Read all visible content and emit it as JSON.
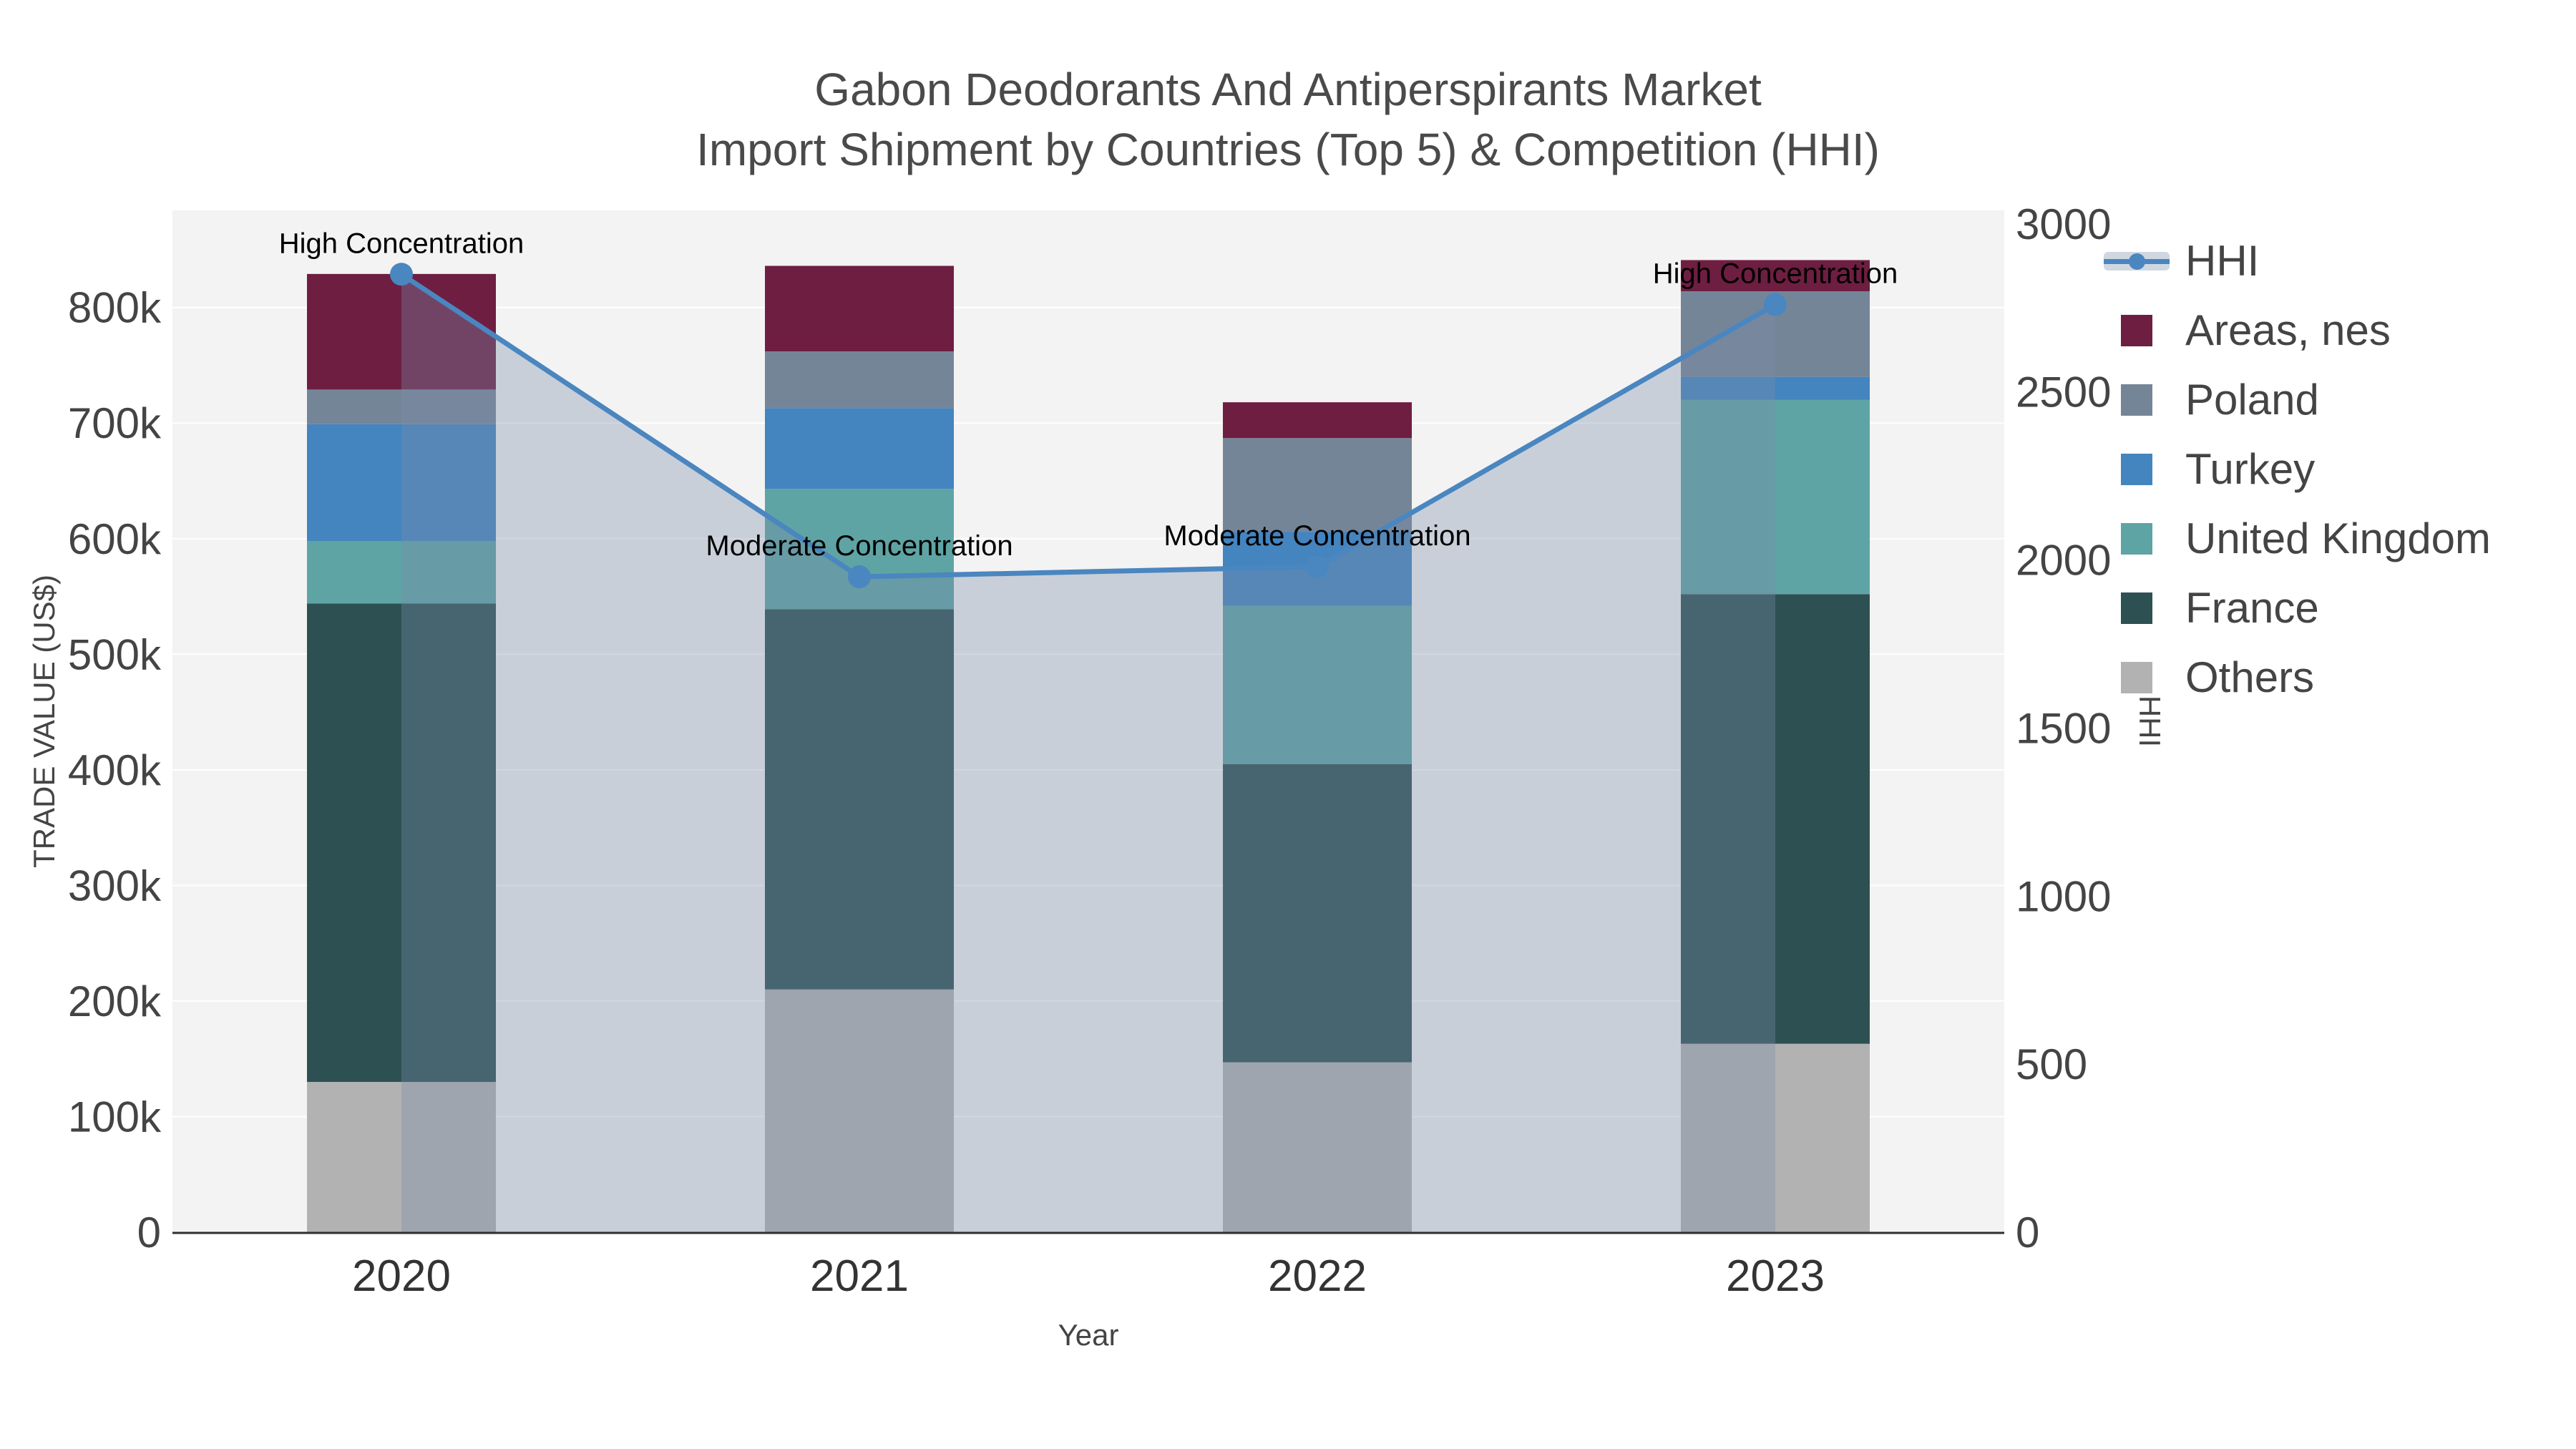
{
  "title": {
    "line1": "Gabon Deodorants And Antiperspirants Market",
    "line2": "Import Shipment by Countries (Top 5) & Competition (HHI)"
  },
  "axes": {
    "x": {
      "title": "Year",
      "ticks": [
        "2020",
        "2021",
        "2022",
        "2023"
      ]
    },
    "y_left": {
      "title": "TRADE VALUE (US$)",
      "ticks": [
        "0",
        "100k",
        "200k",
        "300k",
        "400k",
        "500k",
        "600k",
        "700k",
        "800k"
      ],
      "tick_values": [
        0,
        100000,
        200000,
        300000,
        400000,
        500000,
        600000,
        700000,
        800000
      ]
    },
    "y_right": {
      "title": "HHI",
      "ticks": [
        "0",
        "500",
        "1000",
        "1500",
        "2000",
        "2500",
        "3000"
      ],
      "tick_values": [
        0,
        500,
        1000,
        1500,
        2000,
        2500,
        3000
      ]
    }
  },
  "legend": {
    "items": [
      {
        "key": "hhi",
        "label": "HHI"
      },
      {
        "key": "areas_nes",
        "label": "Areas, nes"
      },
      {
        "key": "poland",
        "label": "Poland"
      },
      {
        "key": "turkey",
        "label": "Turkey"
      },
      {
        "key": "united_kingdom",
        "label": "United Kingdom"
      },
      {
        "key": "france",
        "label": "France"
      },
      {
        "key": "others",
        "label": "Others"
      }
    ]
  },
  "annotations": [
    {
      "text": "High Concentration",
      "x": "2020"
    },
    {
      "text": "Moderate Concentration",
      "x": "2021"
    },
    {
      "text": "Moderate Concentration",
      "x": "2022"
    },
    {
      "text": "High Concentration",
      "x": "2023"
    }
  ],
  "colors": {
    "areas_nes": "#6e1e41",
    "poland": "#758598",
    "turkey": "#4484bf",
    "united_kingdom": "#5fa4a4",
    "france": "#2d5153",
    "others": "#b2b2b2",
    "hhi_line": "#4a86c0",
    "hhi_fill": "rgba(120,140,170,0.35)",
    "plot_bg": "#f3f3f3",
    "grid": "#ffffff",
    "axis_line": "#2f2f2f",
    "tick_text": "#444444",
    "annotation_text": "#000000"
  },
  "chart_data": {
    "type": "bar",
    "stacked": true,
    "categories": [
      "2020",
      "2021",
      "2022",
      "2023"
    ],
    "series": [
      {
        "name": "Others",
        "key": "others",
        "values": [
          130000,
          210000,
          147000,
          163000
        ]
      },
      {
        "name": "France",
        "key": "france",
        "values": [
          414000,
          329000,
          258000,
          389000
        ]
      },
      {
        "name": "United Kingdom",
        "key": "united_kingdom",
        "values": [
          54000,
          104000,
          137000,
          168000
        ]
      },
      {
        "name": "Turkey",
        "key": "turkey",
        "values": [
          101000,
          70000,
          64000,
          20000
        ]
      },
      {
        "name": "Poland",
        "key": "poland",
        "values": [
          30000,
          49000,
          81000,
          74000
        ]
      },
      {
        "name": "Areas, nes",
        "key": "areas_nes",
        "values": [
          100000,
          74000,
          31000,
          27000
        ]
      }
    ],
    "line_series": {
      "name": "HHI",
      "key": "hhi",
      "axis": "right",
      "area_fill": true,
      "values": [
        2850,
        1950,
        1980,
        2760
      ]
    },
    "title": "Gabon Deodorants And Antiperspirants Market — Import Shipment by Countries (Top 5) & Competition (HHI)",
    "xlabel": "Year",
    "ylabel": "TRADE VALUE (US$)",
    "ylabel_right": "HHI",
    "ylim_left": [
      0,
      884000
    ],
    "ylim_right": [
      0,
      3040
    ],
    "grid": true,
    "legend_position": "top-right"
  }
}
